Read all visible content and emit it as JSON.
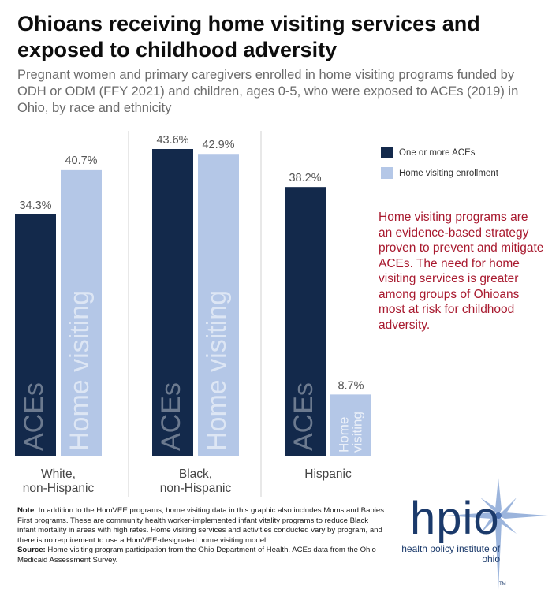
{
  "title": "Ohioans receiving home visiting services and exposed to childhood adversity",
  "subtitle": "Pregnant women and primary caregivers enrolled in home visiting programs funded by ODH or ODM (FFY 2021) and children, ages 0-5, who were exposed to ACEs (2019) in Ohio, by race and ethnicity",
  "chart_data": {
    "type": "bar",
    "categories": [
      "White,\nnon-Hispanic",
      "Black,\nnon-Hispanic",
      "Hispanic"
    ],
    "series": [
      {
        "name": "One or more ACEs",
        "bar_label": "ACEs",
        "color": "#13294b",
        "values": [
          34.3,
          43.6,
          38.2
        ],
        "value_labels": [
          "34.3%",
          "43.6%",
          "38.2%"
        ]
      },
      {
        "name": "Home visiting enrollment",
        "bar_label": "Home visiting",
        "color": "#b4c7e7",
        "values": [
          40.7,
          42.9,
          8.7
        ],
        "value_labels": [
          "40.7%",
          "42.9%",
          "8.7%"
        ]
      }
    ],
    "small_bar_label": [
      "Home",
      "visiting"
    ],
    "ylim": [
      0,
      43.6
    ],
    "legend": "top-right",
    "grid": false
  },
  "legend": {
    "aces": "One or more ACEs",
    "home": "Home visiting enrollment",
    "aces_color": "#13294b",
    "home_color": "#b4c7e7"
  },
  "callout": "Home visiting programs are an evidence-based strategy proven to prevent and mitigate ACEs. The need for home visiting services is greater among groups of Ohioans most at risk for childhood adversity.",
  "note": {
    "note_label": "Note",
    "note_text": ": In addition to the HomVEE programs, home visiting data in this graphic also includes Moms and Babies First programs. These are community health worker-implemented infant vitality programs to reduce Black infant mortality in areas with high rates. Home visiting services and activities conducted vary by program, and there is no requirement to use a HomVEE-designated home visiting model.",
    "source_label": "Source:",
    "source_text": " Home visiting program participation from the Ohio Department of Health. ACEs data from the Ohio Medicaid Assessment Survey."
  },
  "logo": {
    "name": "hpio",
    "tagline": "health policy institute of ohio",
    "tm": "TM"
  }
}
